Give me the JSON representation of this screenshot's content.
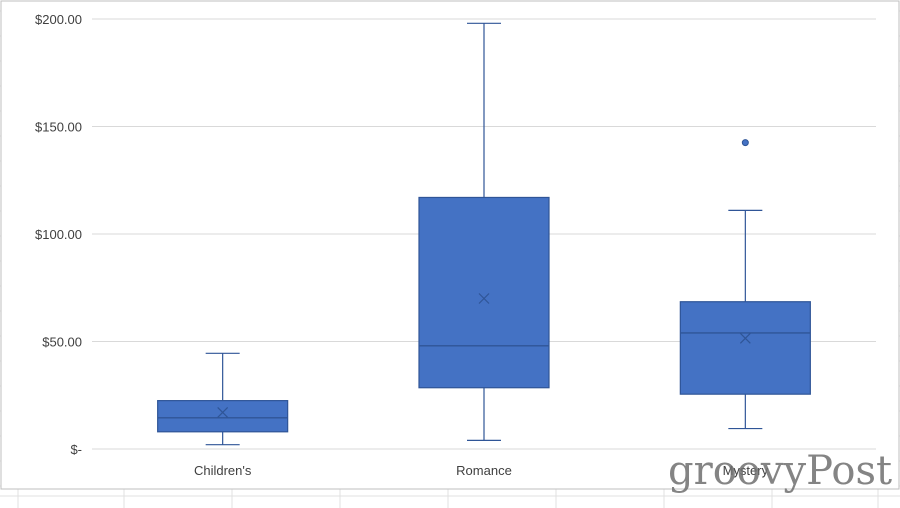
{
  "watermark": "groovyPost",
  "chart_data": {
    "type": "box",
    "categories": [
      "Children's",
      "Romance",
      "Mystery"
    ],
    "boxes": [
      {
        "category": "Children's",
        "min": 2,
        "q1": 8,
        "median": 14.5,
        "q3": 22.5,
        "max": 44.5,
        "mean": 17,
        "outliers": []
      },
      {
        "category": "Romance",
        "min": 4,
        "q1": 28.5,
        "median": 48,
        "q3": 117,
        "max": 198,
        "mean": 70,
        "outliers": []
      },
      {
        "category": "Mystery",
        "min": 9.5,
        "q1": 25.5,
        "median": 54,
        "q3": 68.5,
        "max": 111,
        "mean": 51.5,
        "outliers": [
          142.5
        ]
      }
    ],
    "yticks": [
      {
        "value": 0,
        "label": "$-"
      },
      {
        "value": 50,
        "label": "$50.00"
      },
      {
        "value": 100,
        "label": "$100.00"
      },
      {
        "value": 150,
        "label": "$150.00"
      },
      {
        "value": 200,
        "label": "$200.00"
      }
    ],
    "ylim": [
      0,
      200
    ],
    "grid": true,
    "colors": {
      "box": "#4472c4",
      "stroke": "#2f5597",
      "grid": "#d9d9d9",
      "sheet_grid": "#e1e1e1"
    }
  }
}
